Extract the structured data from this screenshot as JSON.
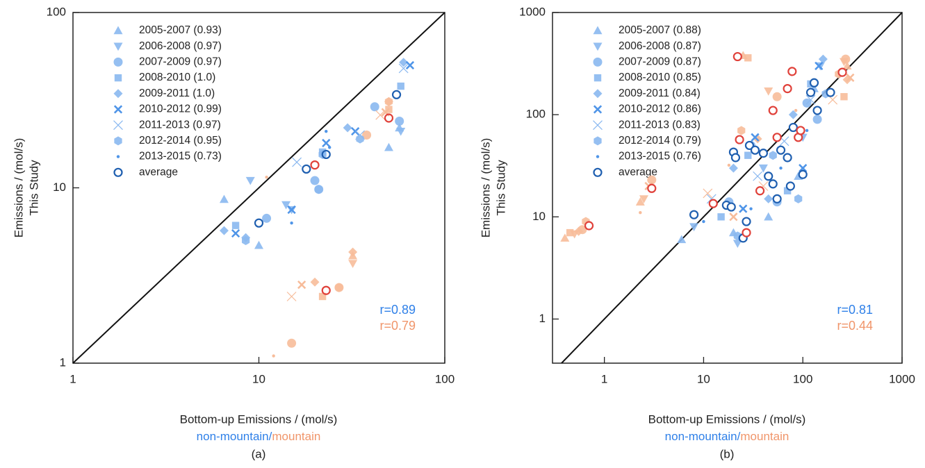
{
  "chart_data": [
    {
      "type": "scatter",
      "log_x": true,
      "log_y": true,
      "diagonal": true,
      "legend": "upper left",
      "ylabel": [
        "Emissions / (mol/s)",
        "This Study"
      ],
      "xlabel": "Bottom-up Emissions / (mol/s)",
      "xlabel_parts": [
        {
          "text": "non-mountain",
          "color": "#2f80e8"
        },
        {
          "text": "/",
          "color": "#2f80e8"
        },
        {
          "text": "mountain",
          "color": "#f0956a"
        }
      ],
      "panel_label": "(a)",
      "annotations": [
        {
          "text": "r=0.89",
          "color": "#2f80e8"
        },
        {
          "text": "r=0.79",
          "color": "#f0956a"
        }
      ],
      "xlim": [
        1,
        100
      ],
      "ylim": [
        1,
        100
      ],
      "xticks": [
        1,
        10,
        100
      ],
      "yticks": [
        1,
        10,
        100
      ],
      "series": [
        {
          "name": "2005-2007 (0.93)",
          "marker": "triangle-up",
          "color": "#8ab8f0",
          "mountain_color": "#f7bc9a",
          "x": [
            6.5,
            10,
            50,
            57
          ],
          "values": [
            8.6,
            4.7,
            17,
            22
          ],
          "mountain_x": [
            32
          ],
          "mountain_values": [
            4.1
          ]
        },
        {
          "name": "2006-2008 (0.97)",
          "marker": "triangle-down",
          "color": "#8ab8f0",
          "mountain_color": "#f7bc9a",
          "x": [
            9,
            14,
            15,
            58
          ],
          "values": [
            11,
            8,
            7.5,
            21
          ],
          "mountain_x": [
            32
          ],
          "mountain_values": [
            3.7
          ]
        },
        {
          "name": "2007-2009 (0.97)",
          "marker": "circle",
          "color": "#8ab8f0",
          "mountain_color": "#f7bc9a",
          "x": [
            11,
            20,
            21,
            42,
            57
          ],
          "values": [
            6.7,
            11,
            9.8,
            29,
            24
          ],
          "mountain_x": [
            15,
            27,
            38
          ],
          "mountain_values": [
            1.3,
            2.7,
            20
          ]
        },
        {
          "name": "2008-2010 (1.0)",
          "marker": "square",
          "color": "#8ab8f0",
          "mountain_color": "#f7bc9a",
          "x": [
            7.5,
            22,
            58
          ],
          "values": [
            6.1,
            16,
            38
          ],
          "mountain_x": [
            22,
            50
          ],
          "mountain_values": [
            2.4,
            28
          ]
        },
        {
          "name": "2009-2011 (1.0)",
          "marker": "diamond",
          "color": "#8ab8f0",
          "mountain_color": "#f7bc9a",
          "x": [
            6.5,
            8.5,
            30,
            60
          ],
          "values": [
            5.7,
            5.2,
            22,
            52
          ],
          "mountain_x": [
            20,
            32,
            50
          ],
          "mountain_values": [
            2.9,
            4.3,
            31
          ]
        },
        {
          "name": "2010-2012 (0.99)",
          "marker": "x",
          "color": "#4f95e8",
          "mountain_color": "#f7bc9a",
          "x": [
            7.5,
            15,
            23,
            33,
            65
          ],
          "values": [
            5.5,
            7.5,
            18,
            21,
            50
          ],
          "mountain_x": [
            17,
            48
          ],
          "mountain_values": [
            2.8,
            27
          ]
        },
        {
          "name": "2011-2013 (0.97)",
          "marker": "thin-x",
          "color": "#8ab8f0",
          "mountain_color": "#f7bc9a",
          "x": [
            16,
            35,
            60
          ],
          "values": [
            14,
            20,
            48
          ],
          "mountain_x": [
            15,
            45
          ],
          "mountain_values": [
            2.4,
            26
          ]
        },
        {
          "name": "2012-2014 (0.95)",
          "marker": "hexagon",
          "color": "#8ab8f0",
          "mountain_color": "#f7bc9a",
          "x": [
            8.5,
            22,
            21,
            35
          ],
          "values": [
            5.0,
            15.5,
            9.8,
            19
          ],
          "mountain_x": [
            27,
            50
          ],
          "mountain_values": [
            2.7,
            31
          ]
        },
        {
          "name": "2013-2015 (0.73)",
          "marker": "dot",
          "color": "#4f95e8",
          "mountain_color": "#f7bc9a",
          "x": [
            15,
            23,
            24
          ],
          "values": [
            6.3,
            21,
            17
          ],
          "mountain_x": [
            12,
            11
          ],
          "mountain_values": [
            1.1,
            11.5
          ]
        },
        {
          "name": "average",
          "marker": "open-circle",
          "color": "#1f5fb0",
          "mountain_color": "#e0413a",
          "x": [
            10,
            18,
            23,
            55
          ],
          "values": [
            6.3,
            12.8,
            15.5,
            34
          ],
          "mountain_x": [
            20,
            23,
            50
          ],
          "mountain_values": [
            13.5,
            2.6,
            25
          ]
        }
      ]
    },
    {
      "type": "scatter",
      "log_x": true,
      "log_y": true,
      "diagonal": true,
      "legend": "upper left",
      "ylabel": [
        "Emissions / (mol/s)",
        "This Study"
      ],
      "xlabel": "Bottom-up Emissions / (mol/s)",
      "xlabel_parts": [
        {
          "text": "non-mountain",
          "color": "#2f80e8"
        },
        {
          "text": "/",
          "color": "#2f80e8"
        },
        {
          "text": "mountain",
          "color": "#f0956a"
        }
      ],
      "panel_label": "(b)",
      "annotations": [
        {
          "text": "r=0.81",
          "color": "#2f80e8"
        },
        {
          "text": "r=0.44",
          "color": "#f0956a"
        }
      ],
      "xlim": [
        0.3,
        1000
      ],
      "ylim": [
        0.37,
        1000
      ],
      "xticks": [
        1,
        10,
        100,
        1000
      ],
      "yticks": [
        1,
        10,
        100,
        1000
      ],
      "series": [
        {
          "name": "2005-2007 (0.88)",
          "marker": "triangle-up",
          "color": "#8ab8f0",
          "mountain_color": "#f7bc9a",
          "x": [
            6,
            20,
            45,
            90,
            130
          ],
          "values": [
            6,
            7,
            10,
            25,
            180
          ],
          "mountain_x": [
            0.4,
            2.3,
            25,
            280
          ],
          "mountain_values": [
            6.2,
            14,
            380,
            300
          ]
        },
        {
          "name": "2006-2008 (0.87)",
          "marker": "triangle-down",
          "color": "#8ab8f0",
          "mountain_color": "#f7bc9a",
          "x": [
            8,
            22,
            40,
            100,
            150
          ],
          "values": [
            8,
            5.5,
            30,
            60,
            300
          ],
          "mountain_x": [
            0.5,
            2.5,
            45,
            260
          ],
          "mountain_values": [
            6.8,
            15,
            170,
            330
          ]
        },
        {
          "name": "2007-2009 (0.87)",
          "marker": "circle",
          "color": "#8ab8f0",
          "mountain_color": "#f7bc9a",
          "x": [
            18,
            30,
            55,
            110,
            140
          ],
          "values": [
            14,
            50,
            14,
            130,
            90
          ],
          "mountain_x": [
            0.6,
            3,
            55,
            270
          ],
          "mountain_values": [
            7.5,
            23,
            150,
            350
          ]
        },
        {
          "name": "2008-2010 (0.85)",
          "marker": "square",
          "color": "#8ab8f0",
          "mountain_color": "#f7bc9a",
          "x": [
            15,
            28,
            70,
            120
          ],
          "values": [
            10,
            40,
            18,
            200
          ],
          "mountain_x": [
            0.45,
            28,
            260
          ],
          "mountain_values": [
            7,
            360,
            150
          ]
        },
        {
          "name": "2009-2011 (0.84)",
          "marker": "diamond",
          "color": "#8ab8f0",
          "mountain_color": "#f7bc9a",
          "x": [
            20,
            45,
            80,
            160
          ],
          "values": [
            30,
            15,
            100,
            350
          ],
          "mountain_x": [
            0.55,
            35,
            280
          ],
          "mountain_values": [
            7.2,
            58,
            220
          ]
        },
        {
          "name": "2010-2012 (0.86)",
          "marker": "x",
          "color": "#4f95e8",
          "mountain_color": "#f7bc9a",
          "x": [
            25,
            33,
            100,
            145
          ],
          "values": [
            12,
            60,
            30,
            300
          ],
          "mountain_x": [
            2.8,
            20,
            300
          ],
          "mountain_values": [
            20,
            10,
            230
          ]
        },
        {
          "name": "2011-2013 (0.83)",
          "marker": "thin-x",
          "color": "#8ab8f0",
          "mountain_color": "#f7bc9a",
          "x": [
            12,
            35,
            65,
            120
          ],
          "values": [
            15,
            25,
            55,
            140
          ],
          "mountain_x": [
            11,
            40,
            200
          ],
          "mountain_values": [
            17,
            20,
            140
          ]
        },
        {
          "name": "2012-2014 (0.79)",
          "marker": "hexagon",
          "color": "#8ab8f0",
          "mountain_color": "#f7bc9a",
          "x": [
            22,
            50,
            90,
            170
          ],
          "values": [
            6.5,
            40,
            15,
            160
          ],
          "mountain_x": [
            0.65,
            24,
            230
          ],
          "mountain_values": [
            9,
            70,
            250
          ]
        },
        {
          "name": "2013-2015 (0.76)",
          "marker": "dot",
          "color": "#4f95e8",
          "mountain_color": "#f7bc9a",
          "x": [
            10,
            30,
            60,
            110
          ],
          "values": [
            9,
            12,
            30,
            70
          ],
          "mountain_x": [
            2.3,
            18,
            85
          ],
          "mountain_values": [
            11,
            32,
            110
          ]
        },
        {
          "name": "average",
          "marker": "open-circle",
          "fill": "#ffffff",
          "color": "#1f5fb0",
          "mountain_color": "#e0413a",
          "x": [
            8,
            17,
            19,
            20,
            21,
            25,
            27,
            29,
            33,
            40,
            45,
            50,
            55,
            60,
            70,
            75,
            80,
            100,
            120,
            130,
            140,
            190
          ],
          "values": [
            10.5,
            13,
            12.5,
            43,
            38,
            6.2,
            9,
            50,
            45,
            42,
            25,
            21,
            15,
            45,
            38,
            20,
            75,
            26,
            165,
            205,
            110,
            165
          ],
          "mountain_x": [
            0.7,
            3,
            12.5,
            22,
            23,
            27,
            37,
            50,
            55,
            70,
            78,
            90,
            95,
            250
          ],
          "mountain_values": [
            8.2,
            19,
            13.5,
            370,
            57,
            7,
            18,
            110,
            60,
            180,
            265,
            60,
            70,
            260
          ]
        }
      ]
    }
  ]
}
